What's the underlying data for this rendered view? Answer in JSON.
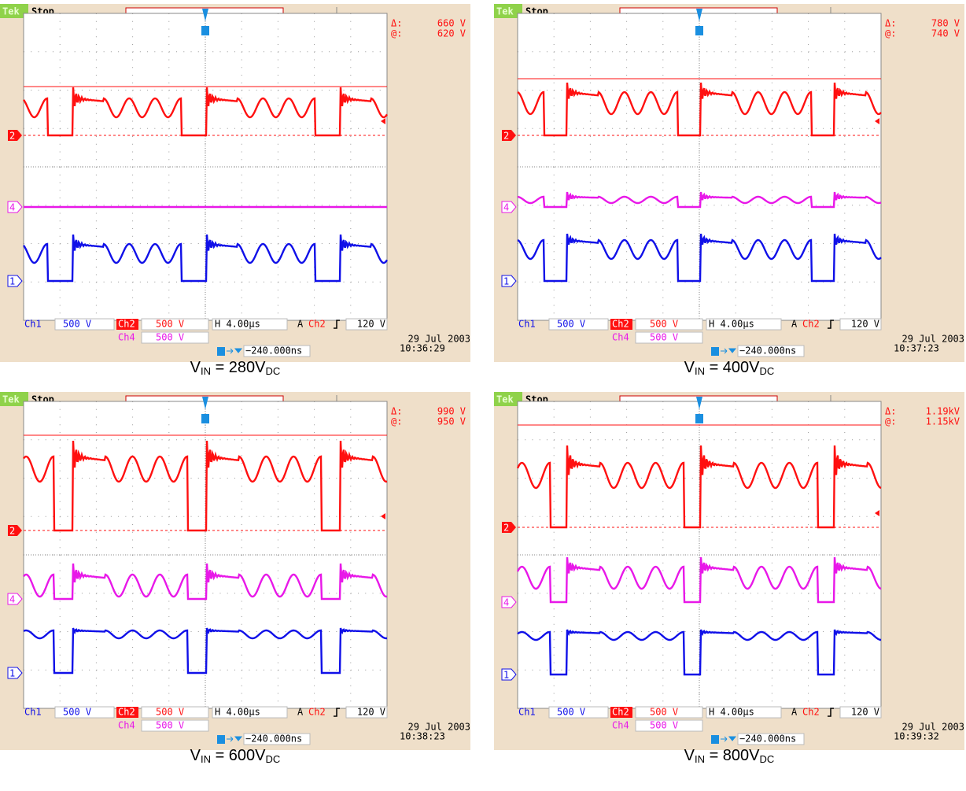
{
  "panels": [
    {
      "tek": "Tek",
      "status": "Stop",
      "delta_label": "Δ:",
      "delta": "660 V",
      "at_label": "@:",
      "at": "620 V",
      "markers": [
        "2",
        "4",
        "1"
      ],
      "ch1_label": "Ch1",
      "ch1_scale": "500 V",
      "ch2_label": "Ch2",
      "ch2_scale": "500 V",
      "ch4_label": "Ch4",
      "ch4_scale": "500 V",
      "horizontal": "H 4.00µs",
      "trigger_label": "A",
      "trigger_source": "Ch2",
      "trigger_level": "120 V",
      "position": "−240.000ns",
      "date": "29 Jul 2003",
      "time": "10:36:29",
      "caption": {
        "v": "V",
        "sub_in": "IN",
        "main": " = 280V",
        "sub_dc": "DC"
      }
    },
    {
      "tek": "Tek",
      "status": "Stop",
      "delta_label": "Δ:",
      "delta": "780 V",
      "at_label": "@:",
      "at": "740 V",
      "markers": [
        "2",
        "4",
        "1"
      ],
      "ch1_label": "Ch1",
      "ch1_scale": "500 V",
      "ch2_label": "Ch2",
      "ch2_scale": "500 V",
      "ch4_label": "Ch4",
      "ch4_scale": "500 V",
      "horizontal": "H 4.00µs",
      "trigger_label": "A",
      "trigger_source": "Ch2",
      "trigger_level": "120 V",
      "position": "−240.000ns",
      "date": "29 Jul 2003",
      "time": "10:37:23",
      "caption": {
        "v": "V",
        "sub_in": "IN",
        "main": " = 400V",
        "sub_dc": "DC"
      }
    },
    {
      "tek": "Tek",
      "status": "Stop",
      "delta_label": "Δ:",
      "delta": "990 V",
      "at_label": "@:",
      "at": "950 V",
      "markers": [
        "2",
        "4",
        "1"
      ],
      "ch1_label": "Ch1",
      "ch1_scale": "500 V",
      "ch2_label": "Ch2",
      "ch2_scale": "500 V",
      "ch4_label": "Ch4",
      "ch4_scale": "500 V",
      "horizontal": "H 4.00µs",
      "trigger_label": "A",
      "trigger_source": "Ch2",
      "trigger_level": "120 V",
      "position": "−240.000ns",
      "date": "29 Jul 2003",
      "time": "10:38:23",
      "caption": {
        "v": "V",
        "sub_in": "IN",
        "main": " = 600V",
        "sub_dc": "DC"
      }
    },
    {
      "tek": "Tek",
      "status": "Stop",
      "delta_label": "Δ:",
      "delta": "1.19kV",
      "at_label": "@:",
      "at": "1.15kV",
      "markers": [
        "2",
        "4",
        "1"
      ],
      "ch1_label": "Ch1",
      "ch1_scale": "500 V",
      "ch2_label": "Ch2",
      "ch2_scale": "500 V",
      "ch4_label": "Ch4",
      "ch4_scale": "500 V",
      "horizontal": "H 4.00µs",
      "trigger_label": "A",
      "trigger_source": "Ch2",
      "trigger_level": "120 V",
      "position": "−240.000ns",
      "date": "29 Jul 2003",
      "time": "10:39:32",
      "caption": {
        "v": "V",
        "sub_in": "IN",
        "main": " = 800V",
        "sub_dc": "DC"
      }
    }
  ]
}
